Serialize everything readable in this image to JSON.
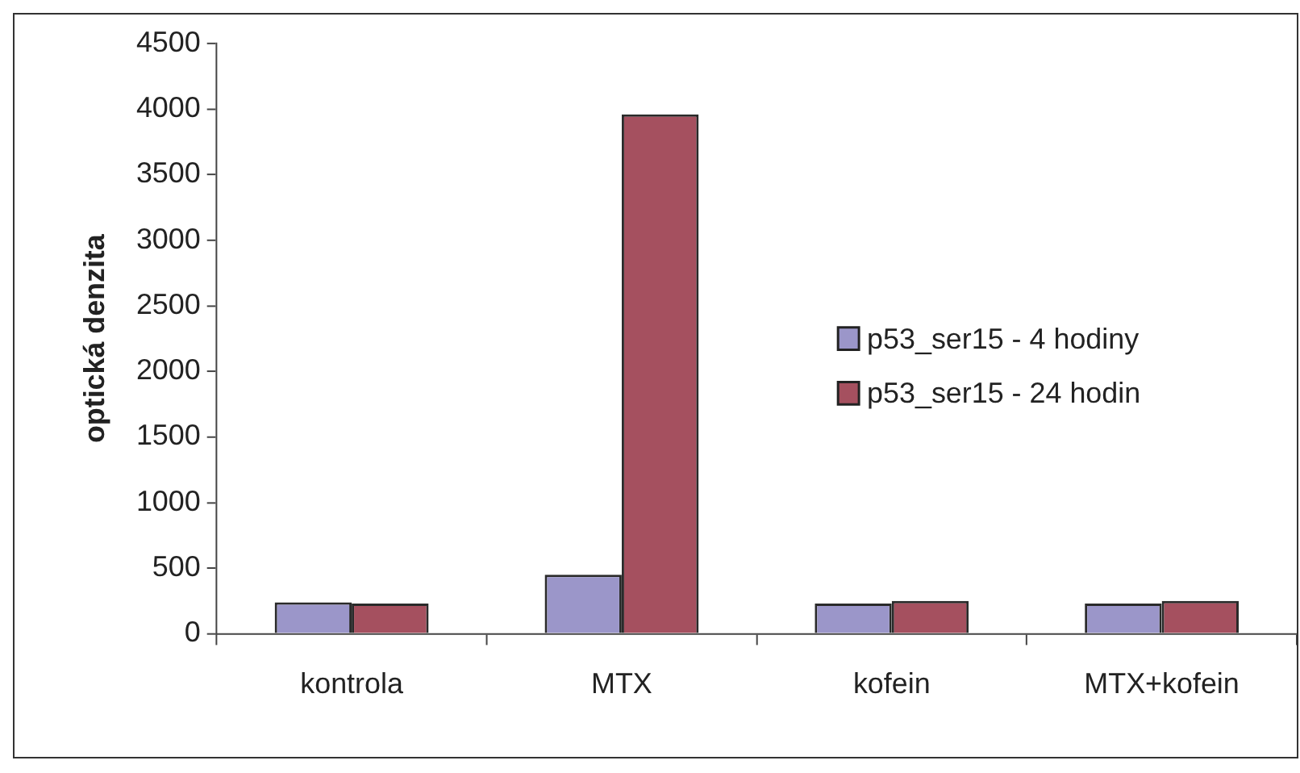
{
  "chart_data": {
    "type": "bar",
    "ylabel": "optická denzita",
    "categories": [
      "kontrola",
      "MTX",
      "kofein",
      "MTX+kofein"
    ],
    "series": [
      {
        "name": "p53_ser15 - 4 hodiny",
        "color": "#9b96c9",
        "values": [
          240,
          450,
          230,
          230
        ]
      },
      {
        "name": "p53_ser15 - 24 hodin",
        "color": "#a5505f",
        "values": [
          230,
          3960,
          250,
          250
        ]
      }
    ],
    "ylim": [
      0,
      4500
    ],
    "yticks": [
      0,
      500,
      1000,
      1500,
      2000,
      2500,
      3000,
      3500,
      4000,
      4500
    ],
    "grid": false,
    "legend": "right"
  }
}
